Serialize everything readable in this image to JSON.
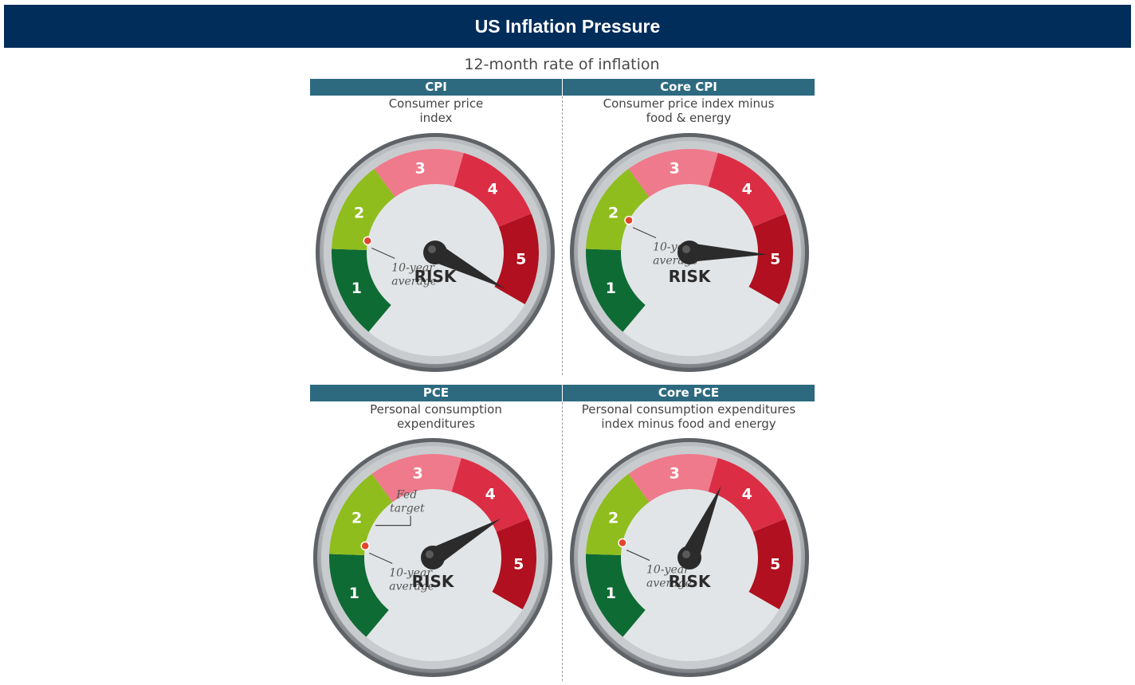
{
  "banner": {
    "title": "US Inflation Pressure"
  },
  "subtitle": "12-month rate of inflation",
  "colors": {
    "banner": "#012d5b",
    "panel_header": "#2d6a80",
    "zone_1": "#0f6b34",
    "zone_2": "#8fbd1d",
    "zone_3": "#ee7a8b",
    "zone_4": "#db2e45",
    "zone_5": "#b0101f",
    "dial_face": "#e2e5e7",
    "needle": "#2b2b2b",
    "marker": "#e2452c"
  },
  "scale": {
    "zones": [
      "1",
      "2",
      "3",
      "4",
      "5"
    ],
    "center_label": "RISK"
  },
  "gauges": [
    {
      "id": "cpi",
      "title": "CPI",
      "description": "Consumer price\nindex",
      "needle_value": 4.95,
      "ten_year_average": 1.15,
      "ten_year_label": "10-year\naverage",
      "fed_target": null,
      "fed_target_label": ""
    },
    {
      "id": "core-cpi",
      "title": "Core CPI",
      "description": "Consumer price index minus\nfood & energy",
      "needle_value": 4.45,
      "ten_year_average": 1.5,
      "ten_year_label": "10-year\naverage",
      "fed_target": null,
      "fed_target_label": ""
    },
    {
      "id": "pce",
      "title": "PCE",
      "description": "Personal consumption\nexpenditures",
      "needle_value": 3.85,
      "ten_year_average": 1.15,
      "ten_year_label": "10-year\naverage",
      "fed_target": 1.5,
      "fed_target_label": "Fed\ntarget"
    },
    {
      "id": "core-pce",
      "title": "Core PCE",
      "description": "Personal consumption expenditures\nindex minus food and energy",
      "needle_value": 3.15,
      "ten_year_average": 1.2,
      "ten_year_label": "10-year\naverage",
      "fed_target": null,
      "fed_target_label": ""
    }
  ]
}
